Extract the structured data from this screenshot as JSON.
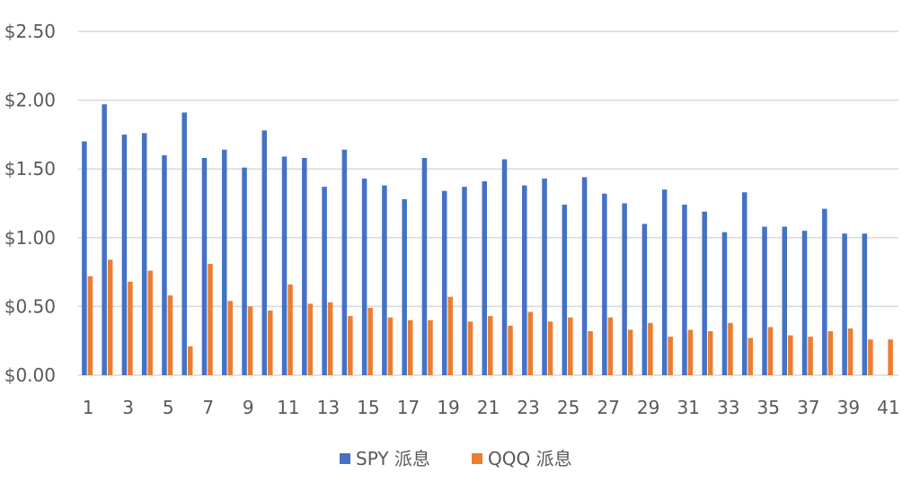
{
  "chart_data": {
    "type": "bar",
    "title": "",
    "xlabel": "",
    "ylabel": "",
    "ylim": [
      0,
      2.5
    ],
    "yticks": [
      "$0.00",
      "$0.50",
      "$1.00",
      "$1.50",
      "$2.00",
      "$2.50"
    ],
    "ytick_values": [
      0,
      0.5,
      1.0,
      1.5,
      2.0,
      2.5
    ],
    "categories": [
      "1",
      "2",
      "3",
      "4",
      "5",
      "6",
      "7",
      "8",
      "9",
      "10",
      "11",
      "12",
      "13",
      "14",
      "15",
      "16",
      "17",
      "18",
      "19",
      "20",
      "21",
      "22",
      "23",
      "24",
      "25",
      "26",
      "27",
      "28",
      "29",
      "30",
      "31",
      "32",
      "33",
      "34",
      "35",
      "36",
      "37",
      "38",
      "39",
      "40",
      "41"
    ],
    "xtick_labels_shown": [
      "1",
      "3",
      "5",
      "7",
      "9",
      "11",
      "13",
      "15",
      "17",
      "19",
      "21",
      "23",
      "25",
      "27",
      "29",
      "31",
      "33",
      "35",
      "37",
      "39",
      "41"
    ],
    "grid": true,
    "legend_position": "bottom",
    "series": [
      {
        "name": "SPY 派息",
        "color": "#4472c4",
        "values": [
          1.7,
          1.97,
          1.75,
          1.76,
          1.6,
          1.91,
          1.58,
          1.64,
          1.51,
          1.78,
          1.59,
          1.58,
          1.37,
          1.64,
          1.43,
          1.38,
          1.28,
          1.58,
          1.34,
          1.37,
          1.41,
          1.57,
          1.38,
          1.43,
          1.24,
          1.44,
          1.32,
          1.25,
          1.1,
          1.35,
          1.24,
          1.19,
          1.04,
          1.33,
          1.08,
          1.08,
          1.05,
          1.21,
          1.03,
          1.03,
          null
        ]
      },
      {
        "name": "QQQ 派息",
        "color": "#ed7d31",
        "values": [
          0.72,
          0.84,
          0.68,
          0.76,
          0.58,
          0.21,
          0.81,
          0.54,
          0.5,
          0.47,
          0.66,
          0.52,
          0.53,
          0.43,
          0.49,
          0.42,
          0.4,
          0.4,
          0.57,
          0.39,
          0.43,
          0.36,
          0.46,
          0.39,
          0.42,
          0.32,
          0.42,
          0.33,
          0.38,
          0.28,
          0.33,
          0.32,
          0.38,
          0.27,
          0.35,
          0.29,
          0.28,
          0.32,
          0.34,
          0.26,
          0.26
        ]
      }
    ]
  }
}
